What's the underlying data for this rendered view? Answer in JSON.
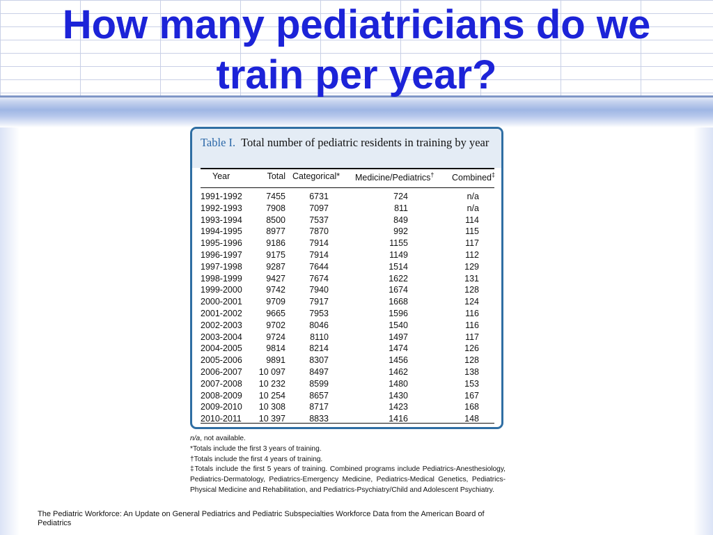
{
  "slide": {
    "title_line1": "How many pediatricians do we",
    "title_line2": "train per year?"
  },
  "table": {
    "label": "Table I.",
    "caption": "Total number of pediatric residents in training by year",
    "headers": {
      "year": "Year",
      "total": "Total",
      "categorical": "Categorical*",
      "medped": "Medicine/Pediatrics",
      "medped_mark": "†",
      "combined": "Combined",
      "combined_mark": "‡"
    },
    "rows": [
      {
        "year": "1991-1992",
        "total": "7455",
        "categorical": "6731",
        "medped": "724",
        "combined": "n/a"
      },
      {
        "year": "1992-1993",
        "total": "7908",
        "categorical": "7097",
        "medped": "811",
        "combined": "n/a"
      },
      {
        "year": "1993-1994",
        "total": "8500",
        "categorical": "7537",
        "medped": "849",
        "combined": "114"
      },
      {
        "year": "1994-1995",
        "total": "8977",
        "categorical": "7870",
        "medped": "992",
        "combined": "115"
      },
      {
        "year": "1995-1996",
        "total": "9186",
        "categorical": "7914",
        "medped": "1155",
        "combined": "117"
      },
      {
        "year": "1996-1997",
        "total": "9175",
        "categorical": "7914",
        "medped": "1149",
        "combined": "112"
      },
      {
        "year": "1997-1998",
        "total": "9287",
        "categorical": "7644",
        "medped": "1514",
        "combined": "129"
      },
      {
        "year": "1998-1999",
        "total": "9427",
        "categorical": "7674",
        "medped": "1622",
        "combined": "131"
      },
      {
        "year": "1999-2000",
        "total": "9742",
        "categorical": "7940",
        "medped": "1674",
        "combined": "128"
      },
      {
        "year": "2000-2001",
        "total": "9709",
        "categorical": "7917",
        "medped": "1668",
        "combined": "124"
      },
      {
        "year": "2001-2002",
        "total": "9665",
        "categorical": "7953",
        "medped": "1596",
        "combined": "116"
      },
      {
        "year": "2002-2003",
        "total": "9702",
        "categorical": "8046",
        "medped": "1540",
        "combined": "116"
      },
      {
        "year": "2003-2004",
        "total": "9724",
        "categorical": "8110",
        "medped": "1497",
        "combined": "117"
      },
      {
        "year": "2004-2005",
        "total": "9814",
        "categorical": "8214",
        "medped": "1474",
        "combined": "126"
      },
      {
        "year": "2005-2006",
        "total": "9891",
        "categorical": "8307",
        "medped": "1456",
        "combined": "128"
      },
      {
        "year": "2006-2007",
        "total": "10 097",
        "categorical": "8497",
        "medped": "1462",
        "combined": "138"
      },
      {
        "year": "2007-2008",
        "total": "10 232",
        "categorical": "8599",
        "medped": "1480",
        "combined": "153"
      },
      {
        "year": "2008-2009",
        "total": "10 254",
        "categorical": "8657",
        "medped": "1430",
        "combined": "167"
      },
      {
        "year": "2009-2010",
        "total": "10 308",
        "categorical": "8717",
        "medped": "1423",
        "combined": "168"
      },
      {
        "year": "2010-2011",
        "total": "10 397",
        "categorical": "8833",
        "medped": "1416",
        "combined": "148"
      }
    ]
  },
  "footnotes": {
    "na_term": "n/a",
    "na_text": ", not available.",
    "note1": "*Totals include the first 3 years of training.",
    "note2": "†Totals include the first 4 years of training.",
    "note3": "‡Totals include the first 5 years of training. Combined programs include Pediatrics-Anesthesiology, Pediatrics-Dermatology, Pediatrics-Emergency Medicine, Pediatrics-Medical Genetics, Pediatrics-Physical Medicine and Rehabilitation, and Pediatrics-Psychiatry/Child and Adolescent Psychiatry."
  },
  "source": "The Pediatric Workforce: An Update on General Pediatrics and Pediatric Subspecialties Workforce Data from the American Board of Pediatrics"
}
